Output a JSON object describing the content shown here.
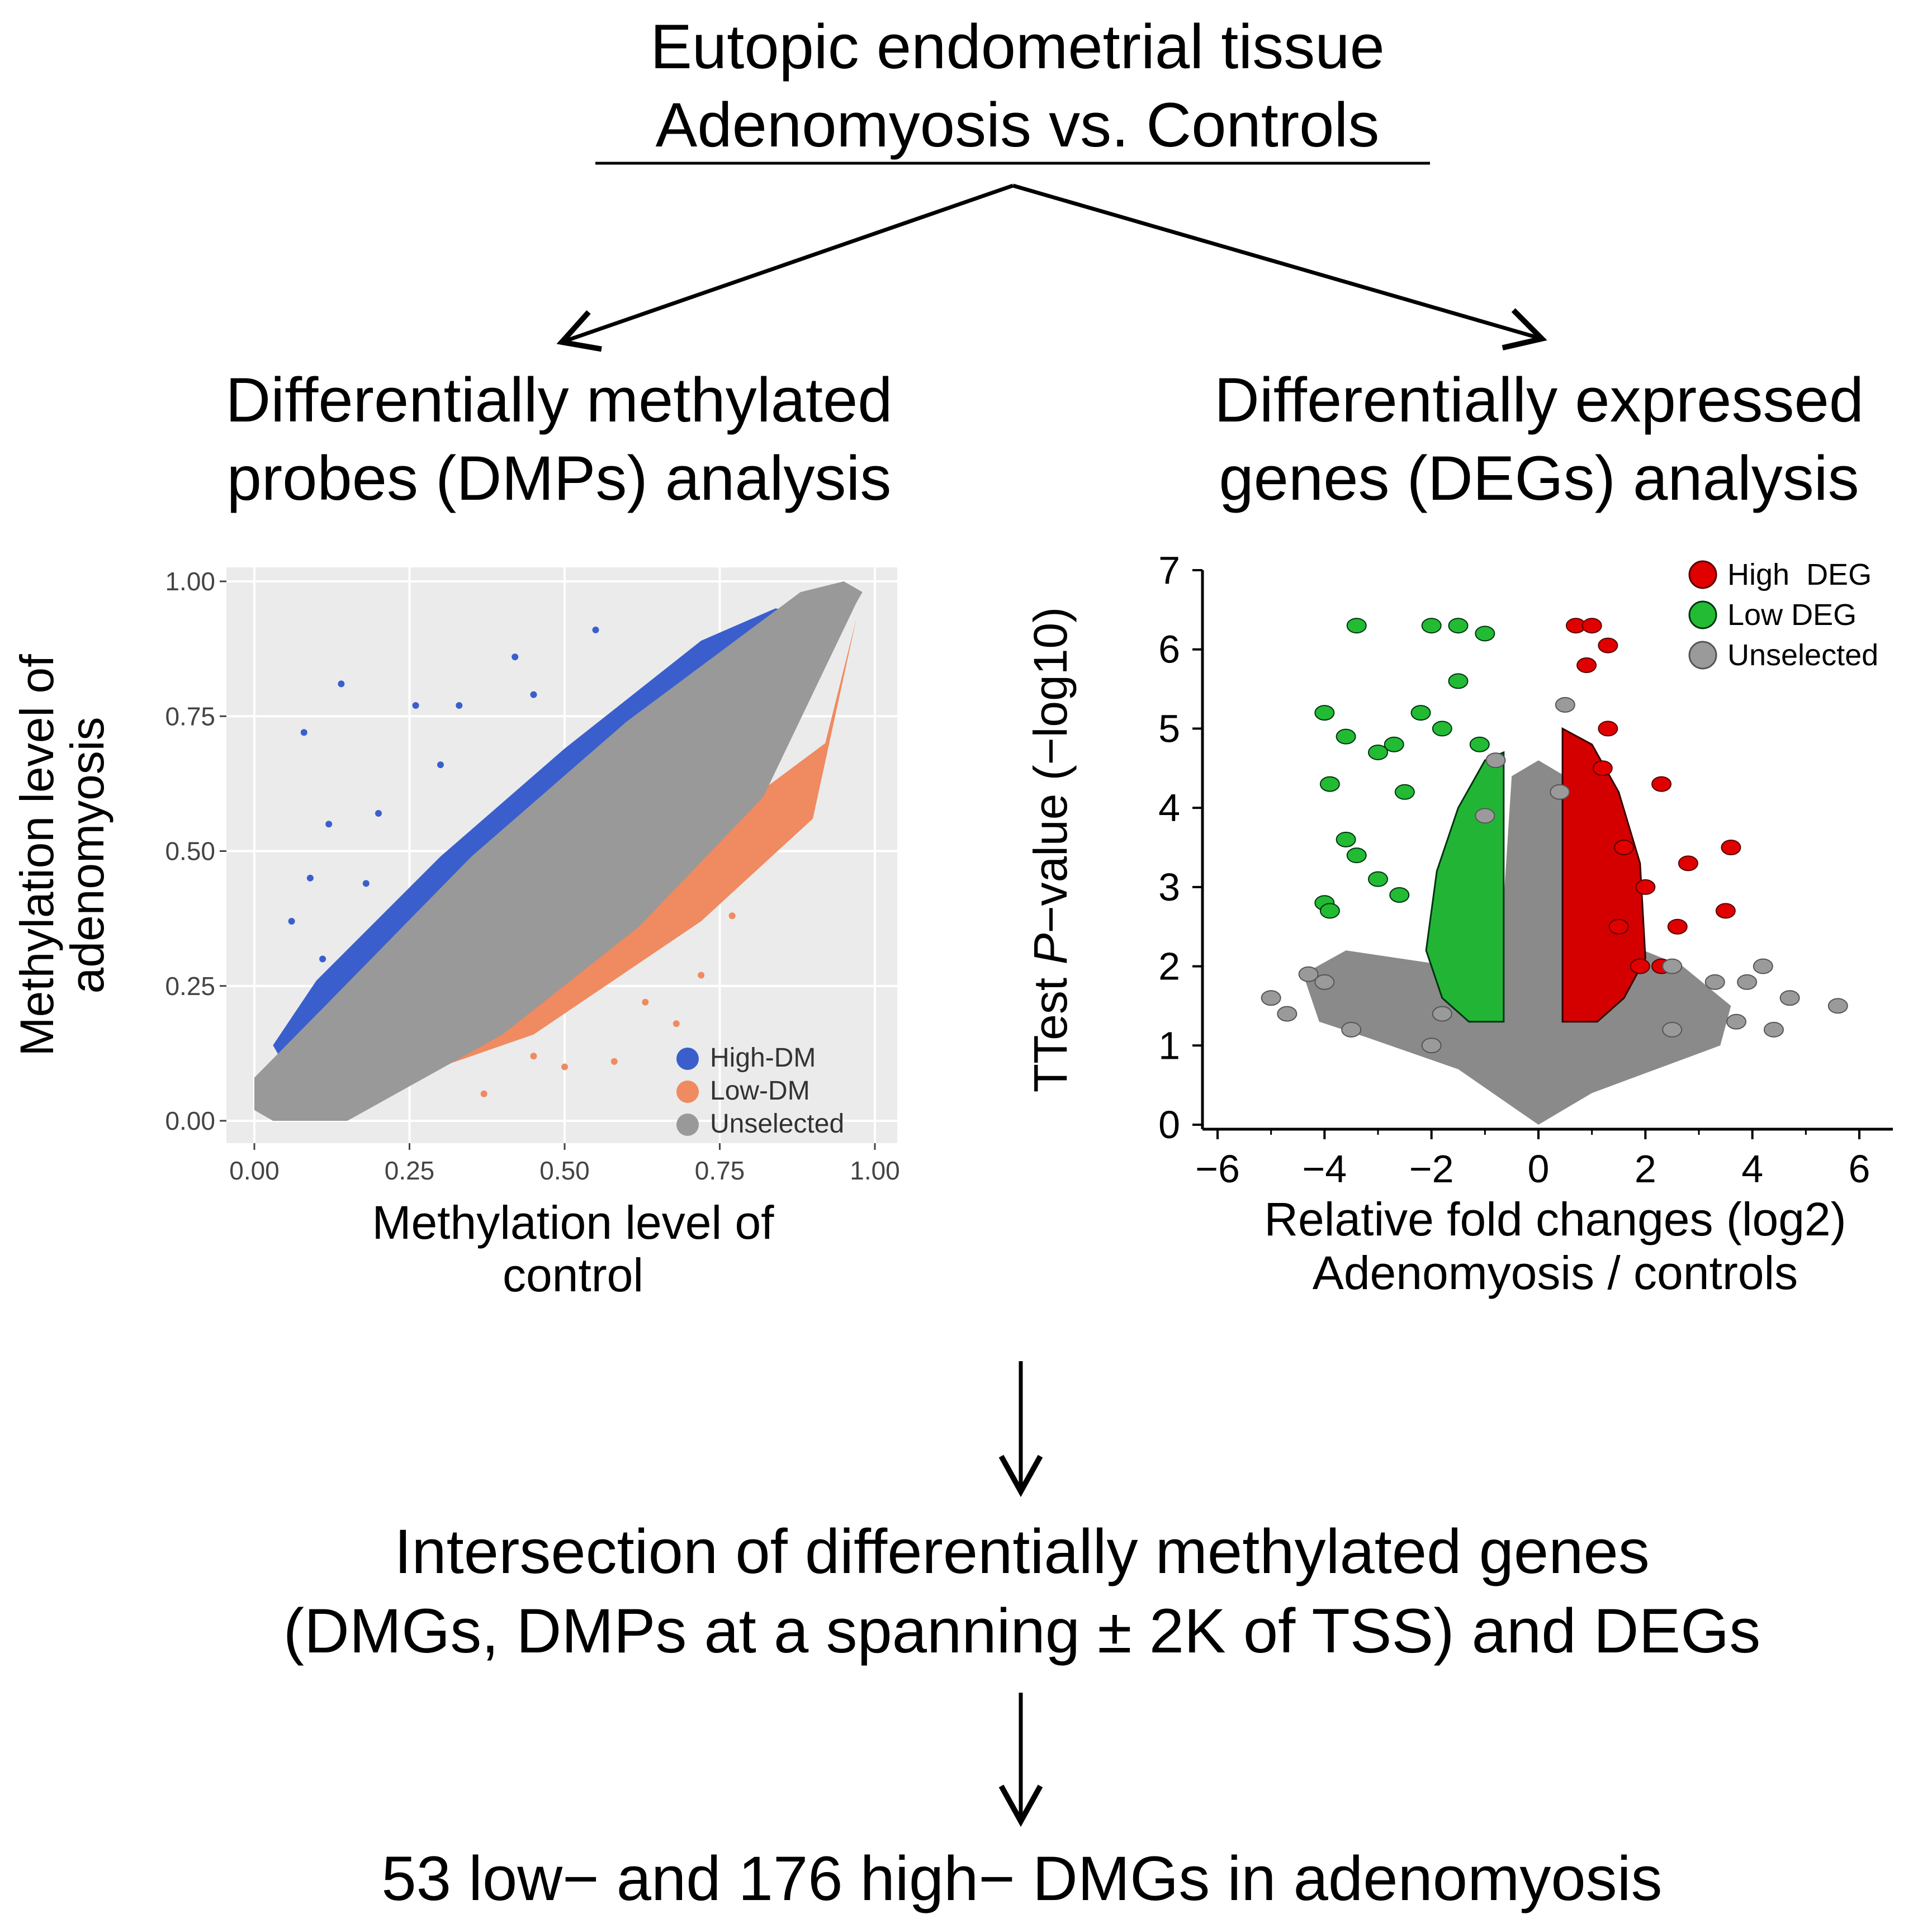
{
  "title": {
    "line1": "Eutopic endometrial tissue",
    "line2": "Adenomyosis vs. Controls"
  },
  "branches": {
    "left_line1": "Differentially methylated",
    "left_line2": "probes (DMPs) analysis",
    "right_line1": "Differentially expressed",
    "right_line2": "genes (DEGs) analysis"
  },
  "steps": {
    "intersection_line1": "Intersection of differentially methylated genes",
    "intersection_line2": "(DMGs, DMPs at a spanning ± 2K of TSS) and DEGs",
    "result": "53 low− and 176 high− DMGs in adenomyosis"
  },
  "colors": {
    "high_dm": "#3a5fcd",
    "low_dm": "#f08a60",
    "unselected_scatter": "#999999",
    "high_deg": "#e00000",
    "low_deg": "#22bb33",
    "unselected_volcano": "#9a9a9a",
    "panel_bg": "#ebebeb"
  },
  "chart_data": [
    {
      "type": "scatter",
      "xlabel_line1": "Methylation level of",
      "xlabel_line2": "control",
      "ylabel_line1": "Methylation level of",
      "ylabel_line2": "adenomyosis",
      "xlim": [
        0,
        1
      ],
      "ylim": [
        0,
        1
      ],
      "x_ticks": [
        "0.00",
        "0.25",
        "0.50",
        "0.75",
        "1.00"
      ],
      "y_ticks": [
        "0.00",
        "0.25",
        "0.50",
        "0.75",
        "1.00"
      ],
      "legend": [
        "High-DM",
        "Low-DM",
        "Unselected"
      ],
      "legend_position": "bottom-right",
      "series": [
        {
          "name": "High-DM",
          "points": [
            [
              0.08,
              0.72
            ],
            [
              0.14,
              0.81
            ],
            [
              0.26,
              0.77
            ],
            [
              0.33,
              0.77
            ],
            [
              0.12,
              0.55
            ],
            [
              0.09,
              0.45
            ],
            [
              0.06,
              0.37
            ],
            [
              0.42,
              0.86
            ],
            [
              0.55,
              0.91
            ],
            [
              0.2,
              0.57
            ],
            [
              0.3,
              0.66
            ],
            [
              0.45,
              0.79
            ],
            [
              0.18,
              0.44
            ],
            [
              0.11,
              0.3
            ]
          ]
        },
        {
          "name": "Low-DM",
          "points": [
            [
              0.37,
              0.05
            ],
            [
              0.58,
              0.11
            ],
            [
              0.63,
              0.22
            ],
            [
              0.72,
              0.27
            ],
            [
              0.77,
              0.38
            ],
            [
              0.83,
              0.5
            ],
            [
              0.5,
              0.1
            ],
            [
              0.88,
              0.55
            ],
            [
              0.68,
              0.18
            ],
            [
              0.45,
              0.12
            ]
          ]
        },
        {
          "name": "Unselected",
          "points": []
        }
      ]
    },
    {
      "type": "scatter",
      "xlabel_line1": "Relative fold changes (log2)",
      "xlabel_line2": "Adenomyosis / controls",
      "ylabel_prefix": "TTest ",
      "ylabel_italic": "P",
      "ylabel_suffix": "−value (−log10)",
      "xlim": [
        -6,
        6
      ],
      "ylim": [
        0,
        7
      ],
      "x_ticks": [
        "−6",
        "−4",
        "−2",
        "0",
        "2",
        "4",
        "6"
      ],
      "y_ticks": [
        "0",
        "1",
        "2",
        "3",
        "4",
        "5",
        "6",
        "7"
      ],
      "legend": [
        "High  DEG",
        "Low DEG",
        "Unselected"
      ],
      "legend_position": "top-right",
      "series": [
        {
          "name": "High DEG",
          "points": [
            [
              0.7,
              6.3
            ],
            [
              1.0,
              6.3
            ],
            [
              1.3,
              6.05
            ],
            [
              0.9,
              5.8
            ],
            [
              1.3,
              5.0
            ],
            [
              2.3,
              4.3
            ],
            [
              3.6,
              3.5
            ],
            [
              2.8,
              3.3
            ],
            [
              3.5,
              2.7
            ],
            [
              2.6,
              2.5
            ],
            [
              2.0,
              3.0
            ],
            [
              1.5,
              2.5
            ],
            [
              1.9,
              2.0
            ],
            [
              2.3,
              2.0
            ],
            [
              1.2,
              4.5
            ],
            [
              1.6,
              3.5
            ]
          ]
        },
        {
          "name": "Low DEG",
          "points": [
            [
              -3.4,
              6.3
            ],
            [
              -2.0,
              6.3
            ],
            [
              -1.5,
              6.3
            ],
            [
              -1.0,
              6.2
            ],
            [
              -4.0,
              5.2
            ],
            [
              -3.6,
              4.9
            ],
            [
              -3.0,
              4.7
            ],
            [
              -3.9,
              4.3
            ],
            [
              -3.6,
              3.6
            ],
            [
              -3.4,
              3.4
            ],
            [
              -4.0,
              2.8
            ],
            [
              -3.9,
              2.7
            ],
            [
              -2.2,
              5.2
            ],
            [
              -2.7,
              4.8
            ],
            [
              -2.5,
              4.2
            ],
            [
              -3.0,
              3.1
            ],
            [
              -2.6,
              2.9
            ],
            [
              -1.5,
              5.6
            ],
            [
              -1.8,
              5.0
            ],
            [
              -1.1,
              4.8
            ]
          ]
        },
        {
          "name": "Unselected",
          "points": [
            [
              -4.3,
              1.9
            ],
            [
              -4.0,
              1.8
            ],
            [
              -4.7,
              1.4
            ],
            [
              -5.0,
              1.6
            ],
            [
              4.2,
              2.0
            ],
            [
              4.7,
              1.6
            ],
            [
              5.6,
              1.5
            ],
            [
              4.4,
              1.2
            ],
            [
              3.7,
              1.3
            ],
            [
              3.3,
              1.8
            ],
            [
              -3.5,
              1.2
            ],
            [
              -2.0,
              1.0
            ],
            [
              2.5,
              1.2
            ],
            [
              -1.0,
              3.9
            ],
            [
              0.4,
              4.2
            ],
            [
              0.5,
              5.3
            ],
            [
              -0.8,
              4.6
            ],
            [
              2.5,
              2.0
            ],
            [
              3.9,
              1.8
            ],
            [
              -1.8,
              1.4
            ]
          ]
        }
      ]
    }
  ]
}
